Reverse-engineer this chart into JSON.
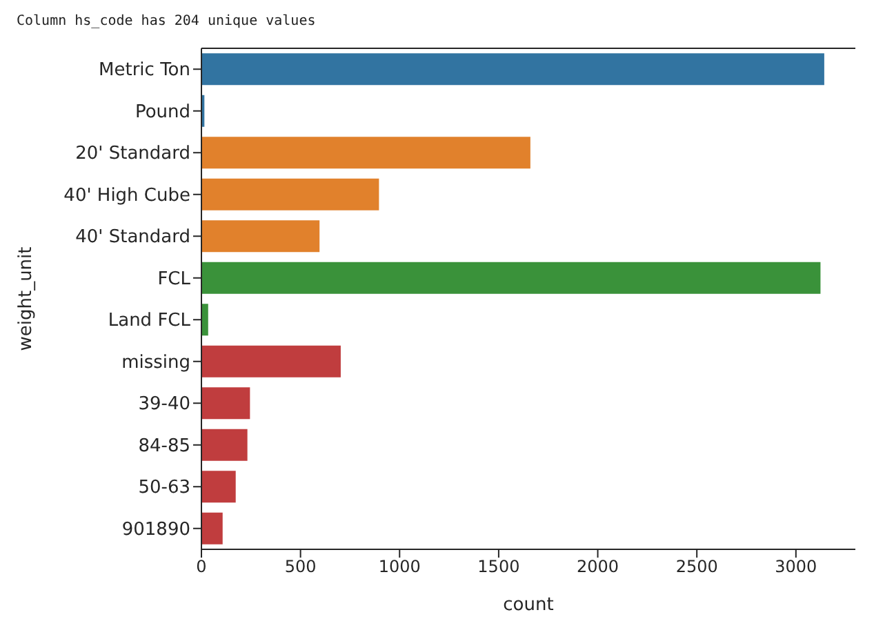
{
  "chart_data": {
    "type": "bar",
    "orientation": "horizontal",
    "title": "Column hs_code has 204 unique values",
    "xlabel": "count",
    "ylabel": "weight_unit",
    "categories": [
      "Metric Ton",
      "Pound",
      "20' Standard",
      "40' High Cube",
      "40' Standard",
      "FCL",
      "Land FCL",
      "missing",
      "39-40",
      "84-85",
      "50-63",
      "901890"
    ],
    "values": [
      3143,
      15,
      1660,
      896,
      596,
      3124,
      34,
      703,
      245,
      232,
      173,
      107
    ],
    "colors": [
      "#3274a1",
      "#3274a1",
      "#e1812c",
      "#e1812c",
      "#e1812c",
      "#3a923a",
      "#3a923a",
      "#c03d3e",
      "#c03d3e",
      "#c03d3e",
      "#c03d3e",
      "#c03d3e"
    ],
    "xlim": [
      0,
      3300
    ],
    "xticks": [
      0,
      500,
      1000,
      1500,
      2000,
      2500,
      3000
    ]
  }
}
